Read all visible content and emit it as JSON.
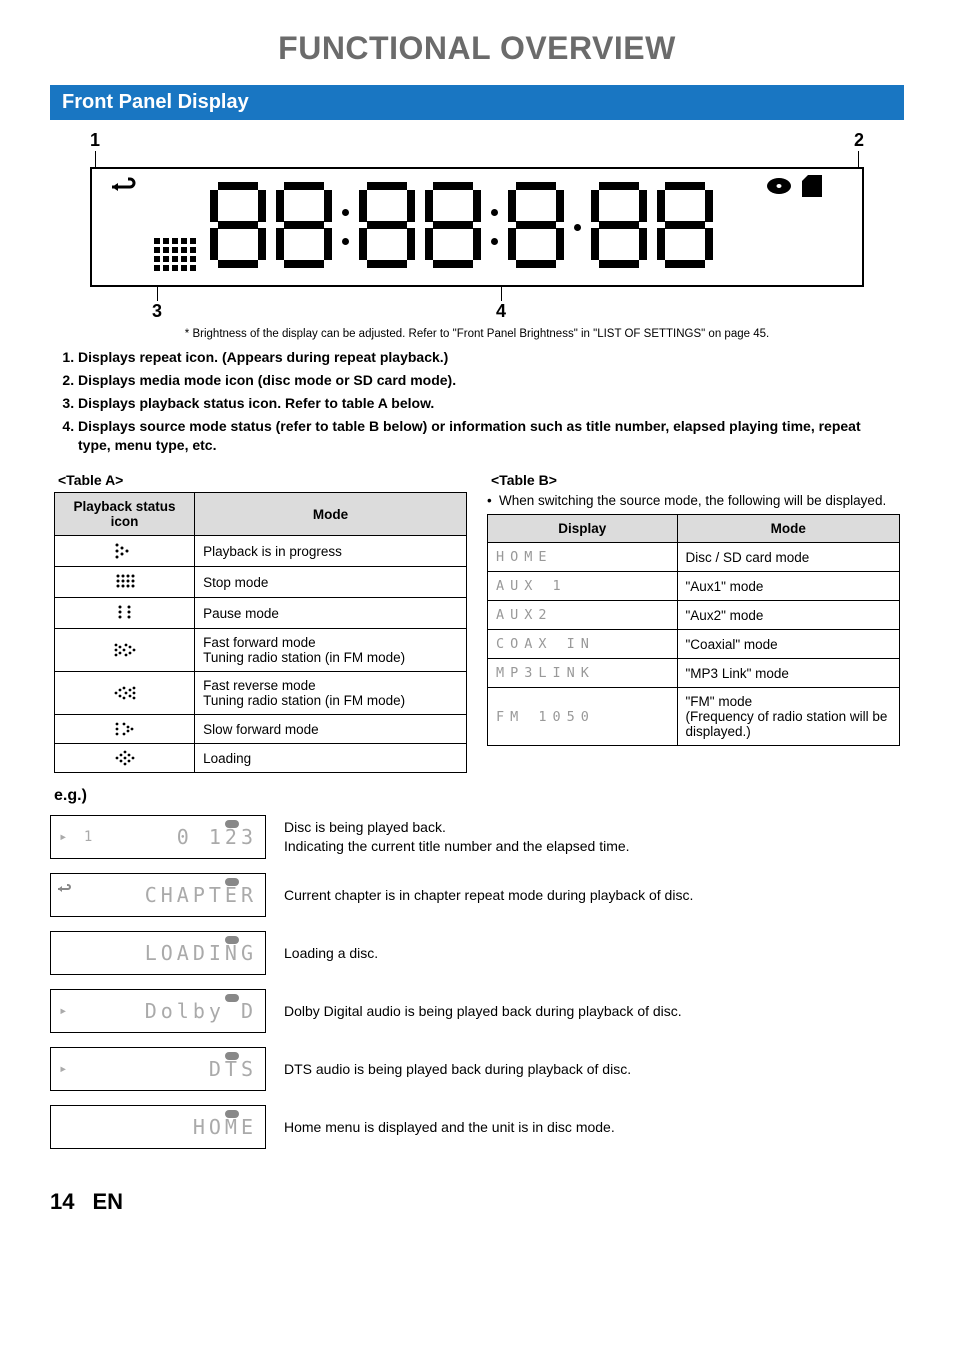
{
  "title": "FUNCTIONAL OVERVIEW",
  "section": "Front Panel Display",
  "panel": {
    "num1": "1",
    "num2": "2",
    "num3": "3",
    "num4": "4"
  },
  "footnote": "* Brightness of the display can be adjusted. Refer to \"Front Panel Brightness\" in \"LIST OF SETTINGS\" on page 45.",
  "list": {
    "i1": "Displays repeat icon. (Appears during repeat playback.)",
    "i2": "Displays media mode icon (disc mode or SD card mode).",
    "i3": "Displays playback status icon. Refer to table A below.",
    "i4": "Displays source mode status (refer to table B below) or information such as title number, elapsed playing time, repeat type, menu type, etc."
  },
  "tableA": {
    "title": "<Table A>",
    "h1": "Playback status icon",
    "h2": "Mode",
    "rows": [
      {
        "m": "Playback is in progress"
      },
      {
        "m": "Stop mode"
      },
      {
        "m": "Pause mode"
      },
      {
        "m": "Fast forward mode\nTuning radio station (in FM mode)"
      },
      {
        "m": "Fast reverse mode\nTuning radio station (in FM mode)"
      },
      {
        "m": "Slow forward mode"
      },
      {
        "m": "Loading"
      }
    ]
  },
  "tableB": {
    "title": "<Table B>",
    "note": "When switching the source mode, the following will be displayed.",
    "h1": "Display",
    "h2": "Mode",
    "rows": [
      {
        "d": "HOME",
        "m": "Disc / SD card mode"
      },
      {
        "d": "AUX 1",
        "m": "\"Aux1\" mode"
      },
      {
        "d": "AUX2",
        "m": "\"Aux2\" mode"
      },
      {
        "d": "COAX  IN",
        "m": "\"Coaxial\" mode"
      },
      {
        "d": "MP3LINK",
        "m": "\"MP3 Link\" mode"
      },
      {
        "d": "FM  1050",
        "m": "\"FM\" mode\n(Frequency of radio station will be displayed.)"
      }
    ]
  },
  "eg": {
    "title": "e.g.)",
    "rows": [
      {
        "box_left": "▸ 1",
        "box_right": "0 123",
        "desc": "Disc is being played back.\nIndicating the current title number and the elapsed time.",
        "repeat": false
      },
      {
        "box_left": "",
        "box_right": "CHAPTER",
        "desc": "Current chapter is in chapter repeat mode during playback of disc.",
        "repeat": true
      },
      {
        "box_left": "",
        "box_right": "LOADING",
        "desc": "Loading a disc.",
        "repeat": false
      },
      {
        "box_left": "▸",
        "box_right": "Dolby D",
        "desc": "Dolby Digital audio is being played back during playback of disc.",
        "repeat": false
      },
      {
        "box_left": "▸",
        "box_right": "DTS",
        "desc": "DTS audio is being played back during playback of disc.",
        "repeat": false
      },
      {
        "box_left": "",
        "box_right": "HOME",
        "desc": "Home menu is displayed and the unit is in disc mode.",
        "repeat": false
      }
    ]
  },
  "footer": {
    "page": "14",
    "lang": "EN"
  }
}
